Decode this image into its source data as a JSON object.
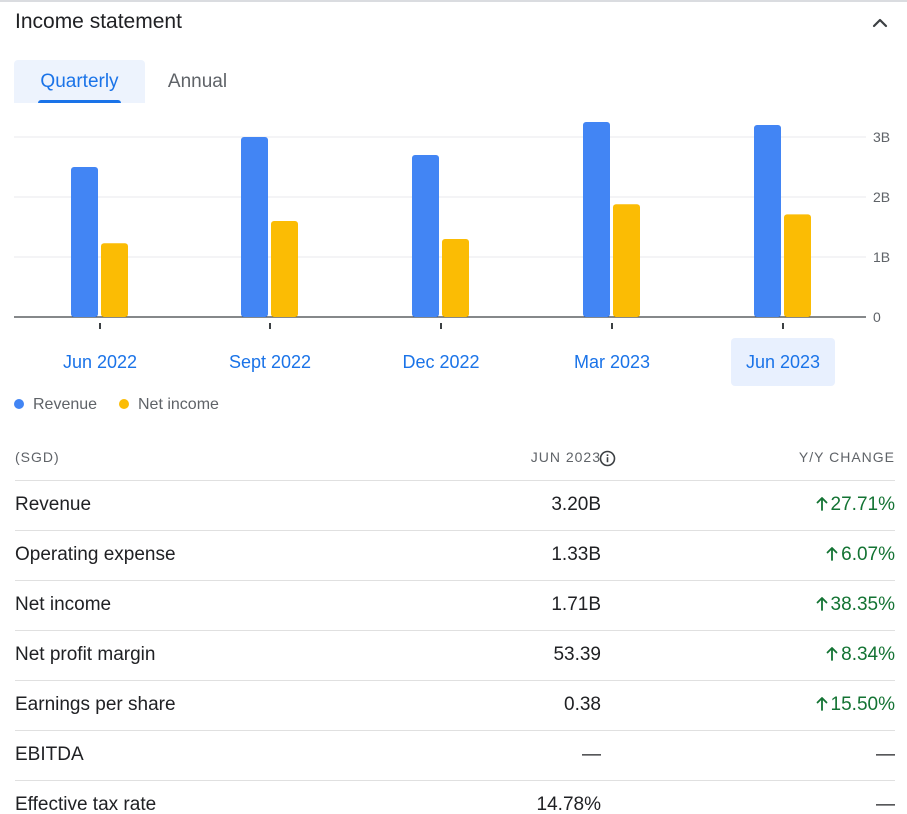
{
  "header": {
    "title": "Income statement",
    "collapse_icon": "chevron-up-icon"
  },
  "tabs": [
    {
      "label": "Quarterly",
      "selected": true
    },
    {
      "label": "Annual",
      "selected": false
    }
  ],
  "colors": {
    "revenue": "#4285f4",
    "net_income": "#fbbc04",
    "accent": "#1a73e8",
    "positive": "#137333"
  },
  "chart_data": {
    "type": "bar",
    "categories": [
      "Jun 2022",
      "Sept 2022",
      "Dec 2022",
      "Mar 2023",
      "Jun 2023"
    ],
    "selected_category": "Jun 2023",
    "series": [
      {
        "name": "Revenue",
        "values": [
          2.5,
          3.0,
          2.7,
          3.25,
          3.2
        ]
      },
      {
        "name": "Net income",
        "values": [
          1.23,
          1.6,
          1.3,
          1.88,
          1.71
        ]
      }
    ],
    "yticks": [
      {
        "value": 0,
        "label": "0"
      },
      {
        "value": 1,
        "label": "1B"
      },
      {
        "value": 2,
        "label": "2B"
      },
      {
        "value": 3,
        "label": "3B"
      }
    ],
    "ylim": [
      0,
      3.3
    ],
    "unit": "B"
  },
  "legend": [
    {
      "label": "Revenue",
      "icon": "revenue-dot"
    },
    {
      "label": "Net income",
      "icon": "net-income-dot"
    }
  ],
  "table": {
    "columns": [
      "(SGD)",
      "JUN 2023",
      "Y/Y CHANGE"
    ],
    "rows": [
      {
        "label": "Revenue",
        "value": "3.20B",
        "change": "27.71%",
        "direction": "up"
      },
      {
        "label": "Operating expense",
        "value": "1.33B",
        "change": "6.07%",
        "direction": "up"
      },
      {
        "label": "Net income",
        "value": "1.71B",
        "change": "38.35%",
        "direction": "up"
      },
      {
        "label": "Net profit margin",
        "value": "53.39",
        "change": "8.34%",
        "direction": "up"
      },
      {
        "label": "Earnings per share",
        "value": "0.38",
        "change": "15.50%",
        "direction": "up"
      },
      {
        "label": "EBITDA",
        "value": "—",
        "change": "—",
        "direction": "none"
      },
      {
        "label": "Effective tax rate",
        "value": "14.78%",
        "change": "—",
        "direction": "none"
      }
    ]
  }
}
